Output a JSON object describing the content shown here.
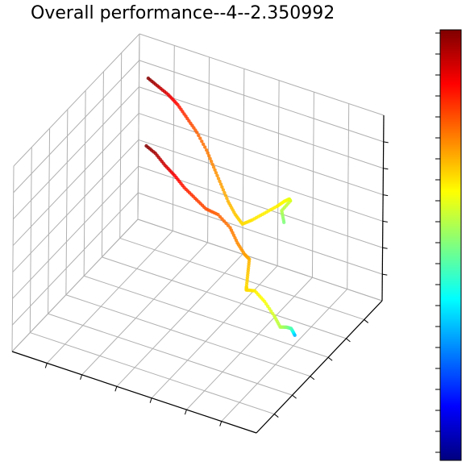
{
  "title": "Overall performance--4--2.350992",
  "colormap": "jet",
  "colormap_stops": [
    "#00007f",
    "#0000ff",
    "#007fff",
    "#00ffff",
    "#7fff7f",
    "#ffff00",
    "#ff7f00",
    "#ff0000",
    "#7f0000"
  ],
  "grid_color": "#b0b0b0",
  "chart_data": {
    "type": "scatter",
    "projection": "3d",
    "title": "Overall performance--4--2.350992",
    "xlabel": "",
    "ylabel": "",
    "zlabel": "",
    "tick_labels_visible": false,
    "colorbar": {
      "visible": true,
      "colormap": "jet",
      "tick_labels_visible": false
    },
    "grid": true,
    "trajectories": [
      {
        "points": [
          [
            0.05,
            0.4,
            0.22
          ],
          [
            0.07,
            0.41,
            0.24
          ],
          [
            0.1,
            0.43,
            0.22
          ],
          [
            0.13,
            0.44,
            0.2
          ],
          [
            0.16,
            0.45,
            0.24
          ],
          [
            0.2,
            0.45,
            0.3
          ],
          [
            0.24,
            0.45,
            0.34
          ],
          [
            0.28,
            0.46,
            0.32
          ],
          [
            0.3,
            0.5,
            0.3
          ],
          [
            0.32,
            0.55,
            0.33
          ],
          [
            0.34,
            0.6,
            0.36
          ],
          [
            0.38,
            0.64,
            0.34
          ],
          [
            0.42,
            0.66,
            0.37
          ],
          [
            0.46,
            0.68,
            0.42
          ],
          [
            0.52,
            0.7,
            0.45
          ],
          [
            0.58,
            0.72,
            0.44
          ],
          [
            0.64,
            0.75,
            0.45
          ],
          [
            0.7,
            0.78,
            0.46
          ],
          [
            0.76,
            0.82,
            0.47
          ],
          [
            0.82,
            0.86,
            0.47
          ],
          [
            0.88,
            0.9,
            0.48
          ],
          [
            0.94,
            0.93,
            0.48
          ]
        ],
        "values": [
          0.3,
          0.44,
          0.5,
          0.55,
          0.58,
          0.62,
          0.64,
          0.66,
          0.66,
          0.68,
          0.7,
          0.72,
          0.74,
          0.76,
          0.78,
          0.8,
          0.82,
          0.85,
          0.88,
          0.92,
          0.96,
          1.0
        ]
      },
      {
        "points": [
          [
            0.2,
            0.6,
            0.62
          ],
          [
            0.22,
            0.62,
            0.66
          ],
          [
            0.2,
            0.65,
            0.7
          ],
          [
            0.22,
            0.68,
            0.68
          ],
          [
            0.25,
            0.7,
            0.64
          ],
          [
            0.28,
            0.7,
            0.6
          ],
          [
            0.32,
            0.68,
            0.56
          ],
          [
            0.36,
            0.66,
            0.52
          ],
          [
            0.4,
            0.66,
            0.48
          ],
          [
            0.44,
            0.68,
            0.5
          ],
          [
            0.48,
            0.7,
            0.54
          ],
          [
            0.52,
            0.72,
            0.6
          ],
          [
            0.56,
            0.74,
            0.66
          ],
          [
            0.6,
            0.76,
            0.72
          ],
          [
            0.66,
            0.8,
            0.76
          ],
          [
            0.72,
            0.84,
            0.78
          ],
          [
            0.78,
            0.88,
            0.8
          ],
          [
            0.84,
            0.92,
            0.8
          ],
          [
            0.9,
            0.95,
            0.8
          ],
          [
            0.96,
            0.98,
            0.8
          ]
        ],
        "values": [
          0.5,
          0.55,
          0.58,
          0.6,
          0.62,
          0.64,
          0.64,
          0.65,
          0.66,
          0.68,
          0.7,
          0.72,
          0.74,
          0.76,
          0.78,
          0.82,
          0.86,
          0.9,
          0.95,
          1.0
        ]
      }
    ]
  }
}
